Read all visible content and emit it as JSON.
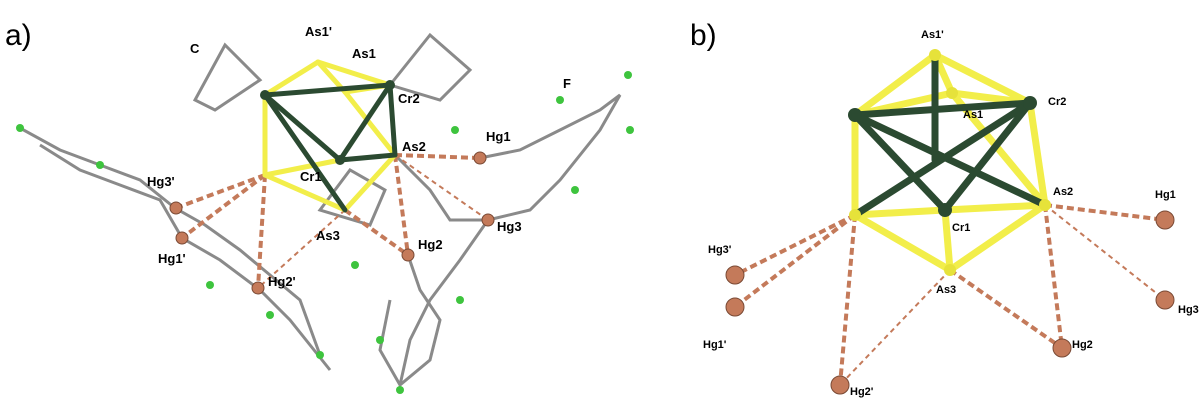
{
  "panels": [
    {
      "tag": "a)",
      "labels": [
        "As1'",
        "As1",
        "C",
        "Cr2",
        "F",
        "As2",
        "Hg1",
        "Hg3'",
        "Cr1",
        "Hg3",
        "Hg1'",
        "As3",
        "Hg2",
        "Hg2'"
      ]
    },
    {
      "tag": "b)",
      "labels": [
        "As1'",
        "Cr2",
        "As1",
        "As2",
        "Hg1",
        "Cr1",
        "Hg3'",
        "Hg3",
        "As3",
        "Hg1'",
        "Hg2",
        "Hg2'"
      ]
    }
  ]
}
